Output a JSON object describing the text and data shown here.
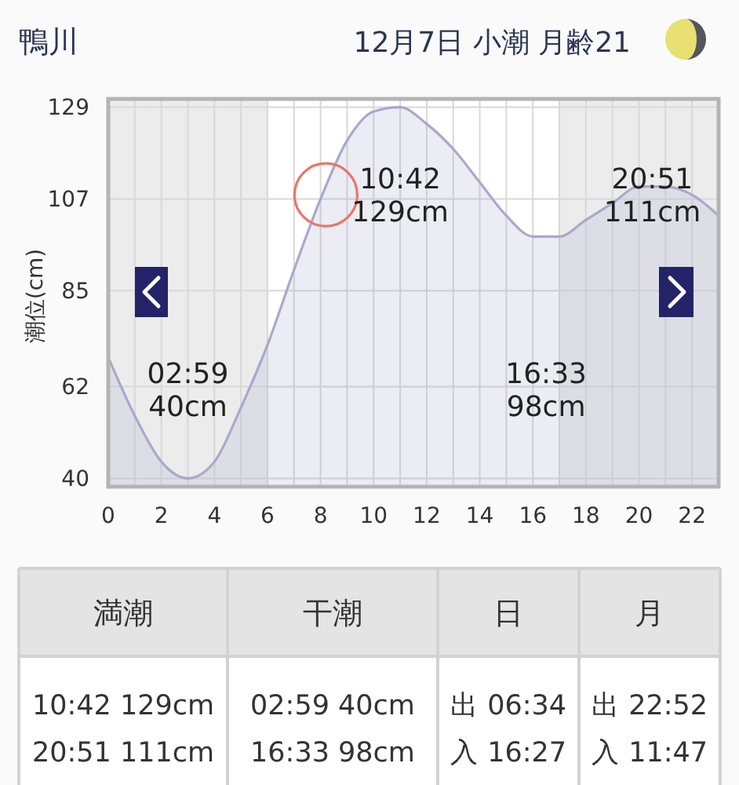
{
  "chart_data": [
    {
      "type": "area",
      "title": "鴨川",
      "subtitle": "12月7日 小潮 月齢21",
      "ylabel": "潮位(cm)",
      "x": [
        0,
        1,
        2,
        3,
        4,
        5,
        6,
        7,
        8,
        9,
        10,
        11,
        12,
        13,
        14,
        15,
        16,
        17,
        18,
        19,
        20,
        21,
        22,
        23
      ],
      "series": [
        {
          "type": "area",
          "color": "#a9a9cc",
          "values": [
            69,
            55,
            44,
            40,
            44,
            57,
            72,
            90,
            107,
            121,
            128,
            129,
            125,
            119,
            111,
            103,
            98,
            98,
            102,
            106,
            110,
            110,
            108,
            103
          ]
        },
        {
          "type": "scatter",
          "color": "#e8766a",
          "marker": "circle",
          "x": [
            8.2
          ],
          "values": [
            108
          ]
        }
      ],
      "xlim": [
        0,
        23
      ],
      "ylim": [
        38,
        131
      ],
      "xticks": [
        0,
        {
          "value": 1,
          "label": null
        },
        2,
        {
          "value": 3,
          "label": null
        },
        4,
        {
          "value": 5,
          "label": null
        },
        6,
        {
          "value": 7,
          "label": null
        },
        8,
        {
          "value": 9,
          "label": null
        },
        10,
        {
          "value": 11,
          "label": null
        },
        12,
        {
          "value": 13,
          "label": null
        },
        14,
        {
          "value": 15,
          "label": null
        },
        16,
        {
          "value": 17,
          "label": null
        },
        18,
        {
          "value": 19,
          "label": null
        },
        20,
        {
          "value": 21,
          "label": null
        },
        22
      ],
      "yticks": [
        40,
        62,
        85,
        107,
        129
      ],
      "grid": true,
      "bands": [
        {
          "axis": "x",
          "from": 0,
          "to": 6,
          "color": "#ececec"
        },
        {
          "axis": "x",
          "from": 17,
          "to": 23,
          "color": "#ececec"
        }
      ],
      "annotations": [
        "02:59\n40cm",
        "10:42\n129cm",
        "16:33\n98cm",
        "20:51\n111cm"
      ]
    },
    {
      "type": "other",
      "categories": [
        "満潮",
        "干潮",
        "日",
        "月"
      ],
      "annotations": [
        "10:42 129cm",
        "20:51 111cm",
        "02:59 40cm",
        "16:33 98cm",
        "出 06:34",
        "入 16:27",
        "出 22:52",
        "入 11:47"
      ]
    }
  ]
}
